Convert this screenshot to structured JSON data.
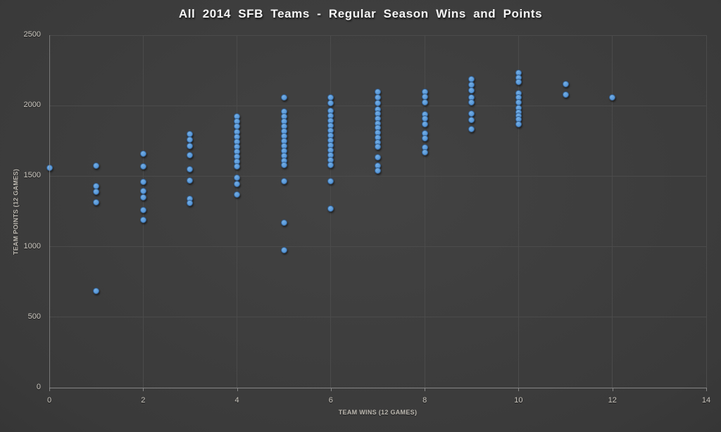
{
  "chart_data": {
    "type": "scatter",
    "title": "All 2014 SFB Teams - Regular Season Wins and Points",
    "xlabel": "TEAM WINS (12 GAMES)",
    "ylabel": "TEAM POINTS (12 GAMES)",
    "xlim": [
      0,
      14
    ],
    "ylim": [
      0,
      2500
    ],
    "x_ticks": [
      0,
      2,
      4,
      6,
      8,
      10,
      12,
      14
    ],
    "y_ticks": [
      0,
      500,
      1000,
      1500,
      2000,
      2500
    ],
    "grid": true,
    "legend": "none",
    "colors": {
      "marker": "#5596d8",
      "marker_highlight": "#74aee4",
      "background": "#3a3a3a",
      "gridline": "#4b4b4b",
      "axis_line": "#9a9a9a",
      "tick_label": "#cac6be",
      "axis_title": "#bdb9b1",
      "title": "#f5f5f5"
    },
    "points": [
      [
        0,
        1560
      ],
      [
        1,
        1575
      ],
      [
        1,
        1430
      ],
      [
        1,
        1390
      ],
      [
        1,
        1315
      ],
      [
        1,
        685
      ],
      [
        2,
        1660
      ],
      [
        2,
        1570
      ],
      [
        2,
        1460
      ],
      [
        2,
        1395
      ],
      [
        2,
        1350
      ],
      [
        2,
        1260
      ],
      [
        2,
        1190
      ],
      [
        3,
        1800
      ],
      [
        3,
        1760
      ],
      [
        3,
        1715
      ],
      [
        3,
        1650
      ],
      [
        3,
        1550
      ],
      [
        3,
        1470
      ],
      [
        3,
        1340
      ],
      [
        3,
        1310
      ],
      [
        4,
        1925
      ],
      [
        4,
        1890
      ],
      [
        4,
        1855
      ],
      [
        4,
        1815
      ],
      [
        4,
        1780
      ],
      [
        4,
        1745
      ],
      [
        4,
        1710
      ],
      [
        4,
        1675
      ],
      [
        4,
        1640
      ],
      [
        4,
        1605
      ],
      [
        4,
        1570
      ],
      [
        4,
        1490
      ],
      [
        4,
        1445
      ],
      [
        4,
        1370
      ],
      [
        5,
        2060
      ],
      [
        5,
        1960
      ],
      [
        5,
        1925
      ],
      [
        5,
        1890
      ],
      [
        5,
        1855
      ],
      [
        5,
        1820
      ],
      [
        5,
        1785
      ],
      [
        5,
        1750
      ],
      [
        5,
        1715
      ],
      [
        5,
        1680
      ],
      [
        5,
        1645
      ],
      [
        5,
        1610
      ],
      [
        5,
        1580
      ],
      [
        5,
        1465
      ],
      [
        5,
        1170
      ],
      [
        5,
        975
      ],
      [
        6,
        2060
      ],
      [
        6,
        2020
      ],
      [
        6,
        1965
      ],
      [
        6,
        1930
      ],
      [
        6,
        1895
      ],
      [
        6,
        1860
      ],
      [
        6,
        1825
      ],
      [
        6,
        1790
      ],
      [
        6,
        1755
      ],
      [
        6,
        1720
      ],
      [
        6,
        1685
      ],
      [
        6,
        1650
      ],
      [
        6,
        1615
      ],
      [
        6,
        1580
      ],
      [
        6,
        1465
      ],
      [
        6,
        1270
      ],
      [
        7,
        2100
      ],
      [
        7,
        2060
      ],
      [
        7,
        2020
      ],
      [
        7,
        1975
      ],
      [
        7,
        1945
      ],
      [
        7,
        1910
      ],
      [
        7,
        1875
      ],
      [
        7,
        1845
      ],
      [
        7,
        1810
      ],
      [
        7,
        1775
      ],
      [
        7,
        1740
      ],
      [
        7,
        1710
      ],
      [
        7,
        1635
      ],
      [
        7,
        1575
      ],
      [
        7,
        1540
      ],
      [
        8,
        2100
      ],
      [
        8,
        2065
      ],
      [
        8,
        2025
      ],
      [
        8,
        1940
      ],
      [
        8,
        1910
      ],
      [
        8,
        1870
      ],
      [
        8,
        1805
      ],
      [
        8,
        1770
      ],
      [
        8,
        1705
      ],
      [
        8,
        1670
      ],
      [
        9,
        2190
      ],
      [
        9,
        2150
      ],
      [
        9,
        2110
      ],
      [
        9,
        2060
      ],
      [
        9,
        2025
      ],
      [
        9,
        1945
      ],
      [
        9,
        1900
      ],
      [
        9,
        1835
      ],
      [
        10,
        2235
      ],
      [
        10,
        2200
      ],
      [
        10,
        2170
      ],
      [
        10,
        2090
      ],
      [
        10,
        2060
      ],
      [
        10,
        2025
      ],
      [
        10,
        1985
      ],
      [
        10,
        1955
      ],
      [
        10,
        1930
      ],
      [
        10,
        1905
      ],
      [
        10,
        1870
      ],
      [
        11,
        2155
      ],
      [
        11,
        2080
      ],
      [
        12,
        2060
      ]
    ]
  }
}
